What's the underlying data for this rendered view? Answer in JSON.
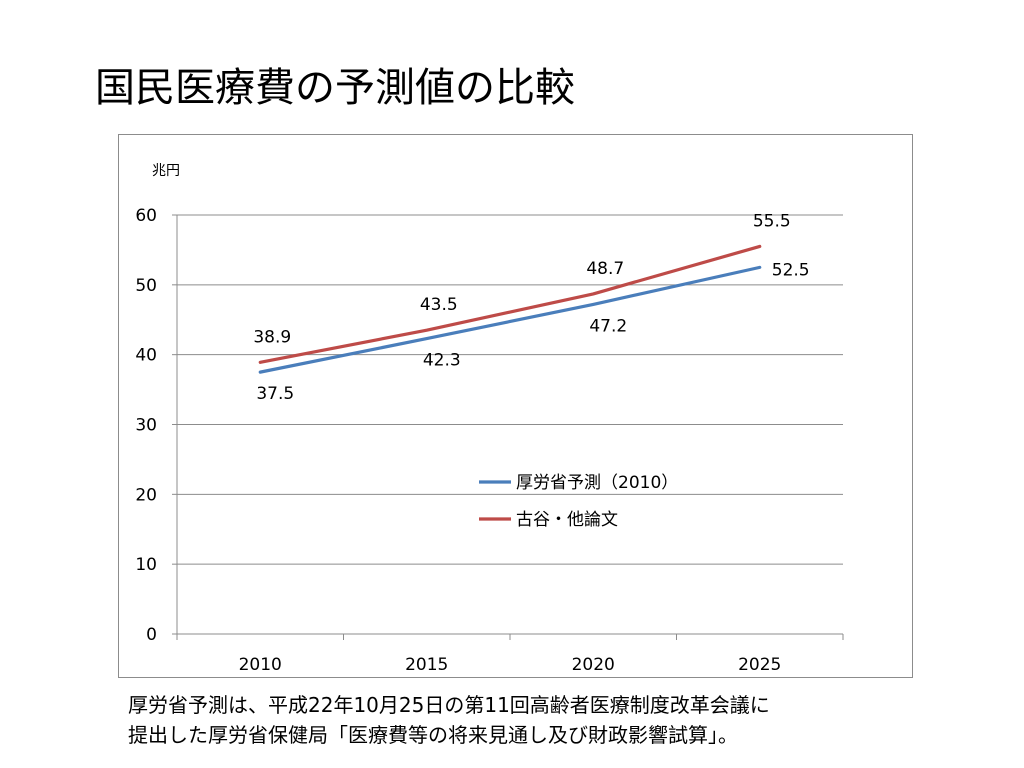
{
  "slide": {
    "title": "国民医療費の予測値の比較",
    "footnote_lines": [
      "厚労省予測は、平成22年10月25日の第11回高齢者医療制度改革会議に",
      "提出した厚労省保健局「医療費等の将来見通し及び財政影響試算」。"
    ]
  },
  "chart_data": {
    "type": "line",
    "title": "",
    "xlabel": "",
    "ylabel": "兆円",
    "categories": [
      "2010",
      "2015",
      "2020",
      "2025"
    ],
    "ylim": [
      0,
      60
    ],
    "yticks": [
      0,
      10,
      20,
      30,
      40,
      50,
      60
    ],
    "grid": true,
    "legend_position": "center",
    "series": [
      {
        "name": "厚労省予測（2010）",
        "color": "#4a7ebb",
        "values": [
          37.5,
          42.3,
          47.2,
          52.5
        ],
        "labels": [
          "37.5",
          "42.3",
          "47.2",
          "52.5"
        ]
      },
      {
        "name": "古谷・他論文",
        "color": "#be4b48",
        "values": [
          38.9,
          43.5,
          48.7,
          55.5
        ],
        "labels": [
          "38.9",
          "43.5",
          "48.7",
          "55.5"
        ]
      }
    ]
  }
}
